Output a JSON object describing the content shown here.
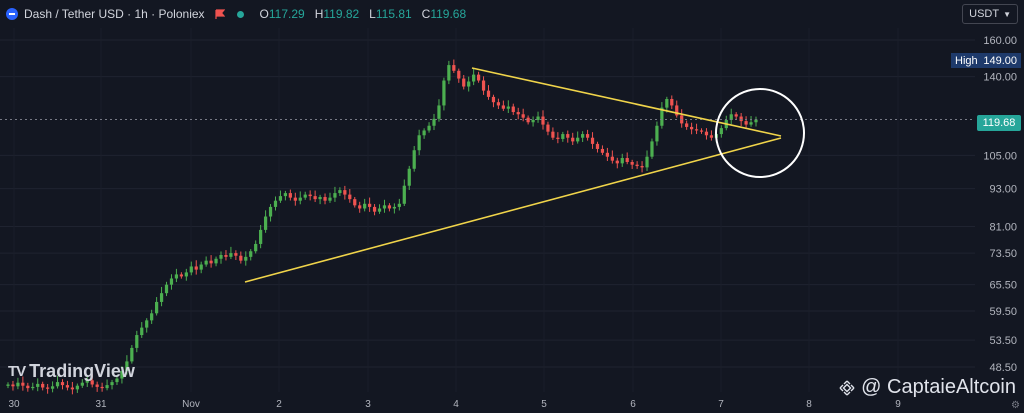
{
  "header": {
    "title": "Dash / Tether USD · 1h · Poloniex",
    "ohlc": [
      {
        "label": "O",
        "value": "117.29"
      },
      {
        "label": "H",
        "value": "119.82"
      },
      {
        "label": "L",
        "value": "115.81"
      },
      {
        "label": "C",
        "value": "119.68"
      }
    ]
  },
  "currency_button": "USDT",
  "high_marker": {
    "label": "High",
    "value": "149.00"
  },
  "last_price": "119.68",
  "branding": {
    "logo": "TradingView",
    "watermark": "@ CaptaieAltcoin"
  },
  "colors": {
    "background": "#131722",
    "up": "#26a69a",
    "down": "#ef5350",
    "wick_up": "#4caf50",
    "trendline": "#f0d44a",
    "circle": "#ffffff"
  },
  "chart_data": {
    "type": "candlestick",
    "title": "Dash / Tether USD · 1h · Poloniex",
    "y_axis": {
      "scale": "log",
      "ticks": [
        "160.00",
        "140.00",
        "105.00",
        "93.00",
        "81.00",
        "73.50",
        "65.50",
        "59.50",
        "53.50",
        "48.50"
      ]
    },
    "x_axis": {
      "ticks": [
        "30",
        "31",
        "Nov",
        "2",
        "3",
        "4",
        "5",
        "6",
        "7",
        "8",
        "9"
      ]
    },
    "approx_closes": [
      45.5,
      45.2,
      45.8,
      45.3,
      44.9,
      45.1,
      45.6,
      45.0,
      44.8,
      45.2,
      45.9,
      45.4,
      45.0,
      44.7,
      45.3,
      45.8,
      46.2,
      45.5,
      45.1,
      44.9,
      45.4,
      45.9,
      46.5,
      47.8,
      49.5,
      52.0,
      54.5,
      56.0,
      57.5,
      59.0,
      61.5,
      63.5,
      65.5,
      67.0,
      68.0,
      67.5,
      68.5,
      70.0,
      69.2,
      70.5,
      71.5,
      70.8,
      72.0,
      73.0,
      72.5,
      73.5,
      72.8,
      71.5,
      72.5,
      74.0,
      76.0,
      80.0,
      84.0,
      87.0,
      89.0,
      90.5,
      91.5,
      90.0,
      89.0,
      90.0,
      91.0,
      90.5,
      89.5,
      90.2,
      89.0,
      90.0,
      91.5,
      92.5,
      91.0,
      89.5,
      87.5,
      86.5,
      88.0,
      87.0,
      85.5,
      86.5,
      87.5,
      86.5,
      87.0,
      88.0,
      94.0,
      100.0,
      107.0,
      113.0,
      115.0,
      117.0,
      120.0,
      126.0,
      138.0,
      146.0,
      143.0,
      139.0,
      135.0,
      137.5,
      141.0,
      138.0,
      133.0,
      130.0,
      127.5,
      126.0,
      124.5,
      125.5,
      123.0,
      122.0,
      120.5,
      118.5,
      119.5,
      121.0,
      117.5,
      114.5,
      112.0,
      111.5,
      113.5,
      112.0,
      110.5,
      112.0,
      113.5,
      112.0,
      109.5,
      107.5,
      106.0,
      104.5,
      103.0,
      102.0,
      104.0,
      102.5,
      101.5,
      101.0,
      100.5,
      104.5,
      110.5,
      117.0,
      125.0,
      129.0,
      126.0,
      121.5,
      118.0,
      116.5,
      115.5,
      115.0,
      114.5,
      113.0,
      112.0,
      113.5,
      116.0,
      119.5,
      122.0,
      121.0,
      119.0,
      117.5,
      118.5,
      119.68
    ],
    "annotations": {
      "triangle_upper_line": "from Nov 4 high ~146 to apex ~Nov 7 ~116",
      "triangle_lower_line": "from Nov 1 ~66 to apex ~Nov 7 ~112",
      "circle": "around apex near Nov 7"
    }
  }
}
